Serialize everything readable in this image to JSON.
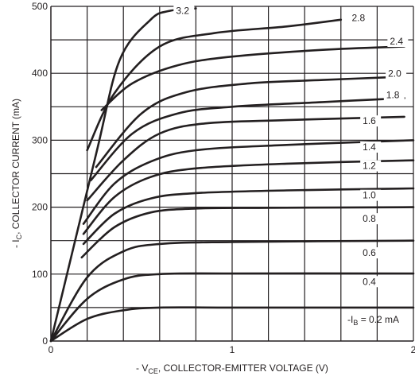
{
  "chart_data": {
    "type": "line",
    "xlabel": {
      "prefix": "- V",
      "sub": "CE",
      "suffix": ", COLLECTOR-EMITTER VOLTAGE (V)"
    },
    "ylabel": {
      "prefix": "- I",
      "sub": "C",
      "suffix": ", COLLECTOR CURRENT (mA)"
    },
    "xlim": [
      0,
      2
    ],
    "ylim": [
      0,
      500
    ],
    "x_ticks": [
      "0",
      "1",
      "2"
    ],
    "y_ticks": [
      "0",
      "100",
      "200",
      "300",
      "400",
      "500"
    ],
    "grid": true,
    "series": [
      {
        "name": "0.2",
        "points": [
          [
            0,
            0
          ],
          [
            0.2,
            33
          ],
          [
            0.4,
            46
          ],
          [
            0.6,
            50
          ],
          [
            1.0,
            50
          ],
          [
            2.0,
            50
          ]
        ]
      },
      {
        "name": "0.4",
        "points": [
          [
            0,
            0
          ],
          [
            0.2,
            63
          ],
          [
            0.4,
            92
          ],
          [
            0.6,
            100
          ],
          [
            1.0,
            101
          ],
          [
            2.0,
            101
          ]
        ]
      },
      {
        "name": "0.6",
        "points": [
          [
            0,
            0
          ],
          [
            0.2,
            95
          ],
          [
            0.4,
            134
          ],
          [
            0.6,
            145
          ],
          [
            1.0,
            148
          ],
          [
            2.0,
            150
          ]
        ]
      },
      {
        "name": "0.8",
        "points": [
          [
            0.17,
            125
          ],
          [
            0.35,
            170
          ],
          [
            0.55,
            192
          ],
          [
            0.8,
            198
          ],
          [
            1.2,
            199
          ],
          [
            2.0,
            200
          ]
        ]
      },
      {
        "name": "1.0",
        "points": [
          [
            0.18,
            145
          ],
          [
            0.35,
            190
          ],
          [
            0.55,
            213
          ],
          [
            0.8,
            221
          ],
          [
            1.3,
            225
          ],
          [
            2.0,
            228
          ]
        ]
      },
      {
        "name": "1.2",
        "points": [
          [
            0.18,
            160
          ],
          [
            0.35,
            215
          ],
          [
            0.55,
            245
          ],
          [
            0.8,
            258
          ],
          [
            1.3,
            265
          ],
          [
            2.0,
            270
          ]
        ]
      },
      {
        "name": "1.4",
        "points": [
          [
            0.18,
            175
          ],
          [
            0.35,
            235
          ],
          [
            0.55,
            268
          ],
          [
            0.8,
            285
          ],
          [
            1.3,
            293
          ],
          [
            2.0,
            300
          ]
        ]
      },
      {
        "name": "1.6",
        "points": [
          [
            0.2,
            210
          ],
          [
            0.4,
            270
          ],
          [
            0.6,
            310
          ],
          [
            0.85,
            325
          ],
          [
            1.3,
            330
          ],
          [
            1.95,
            335
          ]
        ]
      },
      {
        "name": "1.8",
        "points": [
          [
            0.22,
            240
          ],
          [
            0.45,
            310
          ],
          [
            0.7,
            340
          ],
          [
            1.0,
            350
          ],
          [
            1.5,
            357
          ],
          [
            1.95,
            363
          ]
        ]
      },
      {
        "name": "2.0",
        "points": [
          [
            0.25,
            260
          ],
          [
            0.5,
            340
          ],
          [
            0.75,
            372
          ],
          [
            1.1,
            385
          ],
          [
            1.5,
            390
          ],
          [
            1.95,
            395
          ]
        ]
      },
      {
        "name": "2.4",
        "points": [
          [
            0.28,
            345
          ],
          [
            0.45,
            385
          ],
          [
            0.7,
            412
          ],
          [
            1.0,
            425
          ],
          [
            1.5,
            435
          ],
          [
            1.95,
            440
          ]
        ]
      },
      {
        "name": "2.8",
        "points": [
          [
            0.2,
            285
          ],
          [
            0.35,
            370
          ],
          [
            0.6,
            440
          ],
          [
            0.9,
            460
          ],
          [
            1.3,
            470
          ],
          [
            1.6,
            480
          ]
        ]
      },
      {
        "name": "3.2",
        "points": [
          [
            0.0,
            0
          ],
          [
            0.25,
            280
          ],
          [
            0.38,
            420
          ],
          [
            0.55,
            480
          ],
          [
            0.65,
            493
          ],
          [
            0.8,
            497
          ]
        ]
      }
    ],
    "curve_labels": [
      "3.2",
      "2.8",
      "2.4",
      "2.0",
      "1.8",
      "1.6",
      "1.4",
      "1.2",
      "1.0",
      "0.8",
      "0.6",
      "0.4"
    ],
    "base_label": {
      "prefix": "-I",
      "sub": "B",
      "suffix": " = 0.2 mA"
    }
  }
}
